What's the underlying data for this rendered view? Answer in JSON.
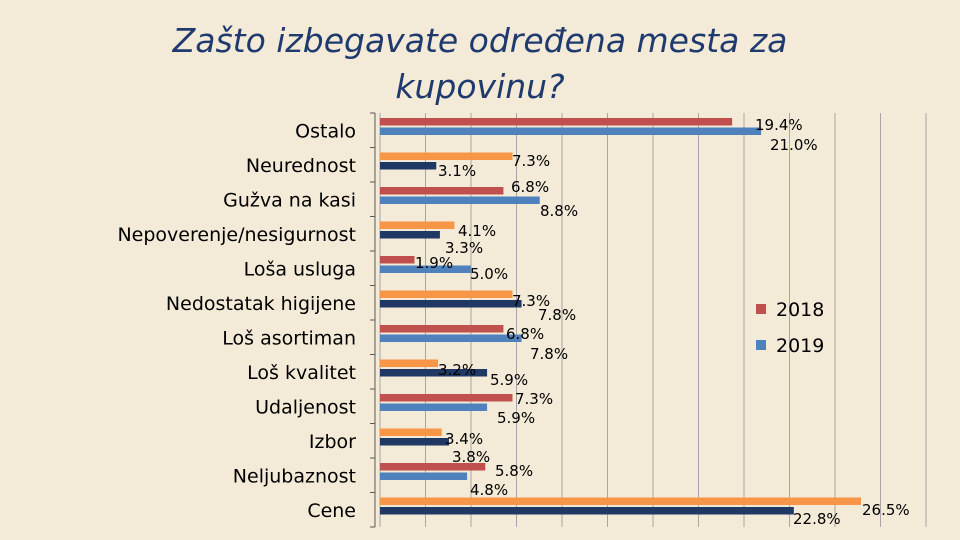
{
  "chart_data": {
    "type": "bar",
    "orientation": "horizontal",
    "title": "Zašto izbegavate određena mesta za kupovinu?",
    "categories": [
      "Ostalo",
      "Neurednost",
      "Gužva na kasi",
      "Nepoverenje/nesigurnost",
      "Loša usluga",
      "Nedostatak higijene",
      "Loš asortiman",
      "Loš kvalitet",
      "Udaljenost",
      "Izbor",
      "Neljubaznost",
      "Cene"
    ],
    "series": [
      {
        "name": "2018",
        "values": [
          19.4,
          7.3,
          6.8,
          4.1,
          1.9,
          7.3,
          6.8,
          3.2,
          7.3,
          3.4,
          5.8,
          26.5
        ],
        "labels": [
          "19.4%",
          "7.3%",
          "6.8%",
          "4.1%",
          "1.9%",
          "7.3%",
          "6.8%",
          "3.2%",
          "7.3%",
          "3.4%",
          "5.8%",
          "26.5%"
        ]
      },
      {
        "name": "2019",
        "values": [
          21.0,
          3.1,
          8.8,
          3.3,
          5.0,
          7.8,
          7.8,
          5.9,
          5.9,
          3.8,
          4.8,
          22.8
        ],
        "labels": [
          "21.0%",
          "3.1%",
          "8.8%",
          "3.3%",
          "5.0%",
          "7.8%",
          "7.8%",
          "5.9%",
          "5.9%",
          "3.8%",
          "4.8%",
          "22.8%"
        ]
      }
    ],
    "colors": {
      "red": "#c0504d",
      "orange": "#f79646",
      "blue": "#4f81bd",
      "navy": "#1f3864",
      "grid": "#a6a6a6",
      "axis": "#595959"
    },
    "xlim": [
      0,
      27
    ],
    "grid": true,
    "legend_position": "right"
  }
}
